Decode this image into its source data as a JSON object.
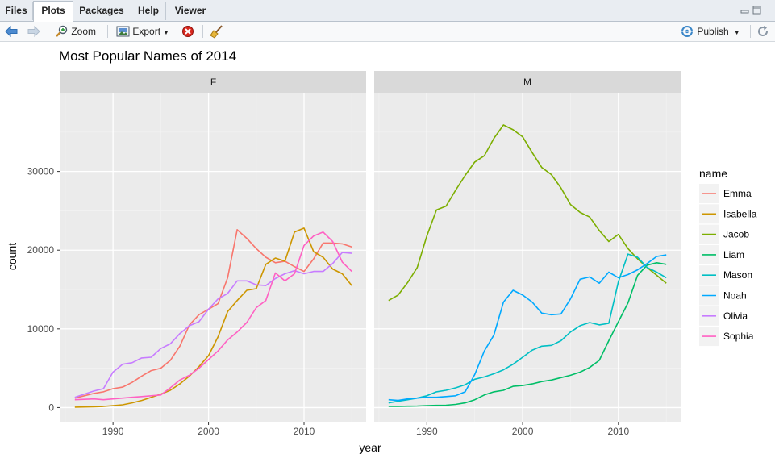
{
  "tabs": [
    "Files",
    "Plots",
    "Packages",
    "Help",
    "Viewer"
  ],
  "toolbar": {
    "zoom_label": "Zoom",
    "export_label": "Export",
    "publish_label": "Publish"
  },
  "chart_data": {
    "type": "line",
    "title": "Most Popular Names of 2014",
    "xlabel": "year",
    "ylabel": "count",
    "xlim": [
      1984.5,
      2016.5
    ],
    "ylim": [
      -1800,
      40000
    ],
    "x_ticks": [
      1990,
      2000,
      2010
    ],
    "y_ticks": [
      0,
      10000,
      20000,
      30000
    ],
    "grid": true,
    "legend_title": "name",
    "legend_position": "right",
    "panels": [
      "F",
      "M"
    ],
    "series": [
      {
        "name": "Emma",
        "panel": "F",
        "color": "#f8766d",
        "x": [
          1986,
          1987,
          1988,
          1989,
          1990,
          1991,
          1992,
          1993,
          1994,
          1995,
          1996,
          1997,
          1998,
          1999,
          2000,
          2001,
          2002,
          2003,
          2004,
          2005,
          2006,
          2007,
          2008,
          2009,
          2010,
          2011,
          2012,
          2013,
          2014,
          2015
        ],
        "y": [
          1200,
          1500,
          1800,
          2000,
          2400,
          2600,
          3200,
          4000,
          4700,
          5000,
          6000,
          7800,
          10500,
          11800,
          12500,
          13200,
          16500,
          22600,
          21500,
          20200,
          19100,
          18400,
          18600,
          17900,
          17300,
          18900,
          20900,
          20900,
          20800,
          20400
        ]
      },
      {
        "name": "Isabella",
        "panel": "F",
        "color": "#cd9600",
        "x": [
          1986,
          1987,
          1988,
          1989,
          1990,
          1991,
          1992,
          1993,
          1994,
          1995,
          1996,
          1997,
          1998,
          1999,
          2000,
          2001,
          2002,
          2003,
          2004,
          2005,
          2006,
          2007,
          2008,
          2009,
          2010,
          2011,
          2012,
          2013,
          2014,
          2015
        ],
        "y": [
          50,
          70,
          100,
          150,
          250,
          350,
          600,
          900,
          1300,
          1700,
          2200,
          3000,
          4000,
          5200,
          6600,
          9000,
          12200,
          13600,
          14900,
          15100,
          18200,
          19000,
          18600,
          22300,
          22800,
          19800,
          19100,
          17600,
          17000,
          15500
        ]
      },
      {
        "name": "Olivia",
        "panel": "F",
        "color": "#c77cff",
        "x": [
          1986,
          1987,
          1988,
          1989,
          1990,
          1991,
          1992,
          1993,
          1994,
          1995,
          1996,
          1997,
          1998,
          1999,
          2000,
          2001,
          2002,
          2003,
          2004,
          2005,
          2006,
          2007,
          2008,
          2009,
          2010,
          2011,
          2012,
          2013,
          2014,
          2015
        ],
        "y": [
          1300,
          1700,
          2100,
          2400,
          4500,
          5500,
          5700,
          6300,
          6400,
          7500,
          8100,
          9400,
          10400,
          10900,
          12500,
          13800,
          14500,
          16100,
          16100,
          15600,
          15500,
          16400,
          17000,
          17400,
          17000,
          17300,
          17300,
          18300,
          19700,
          19600
        ]
      },
      {
        "name": "Sophia",
        "panel": "F",
        "color": "#ff61c3",
        "x": [
          1986,
          1987,
          1988,
          1989,
          1990,
          1991,
          1992,
          1993,
          1994,
          1995,
          1996,
          1997,
          1998,
          1999,
          2000,
          2001,
          2002,
          2003,
          2004,
          2005,
          2006,
          2007,
          2008,
          2009,
          2010,
          2011,
          2012,
          2013,
          2014,
          2015
        ],
        "y": [
          1000,
          1050,
          1100,
          1000,
          1100,
          1200,
          1300,
          1400,
          1500,
          1600,
          2500,
          3500,
          4100,
          5000,
          6100,
          7200,
          8600,
          9600,
          10800,
          12700,
          13600,
          17100,
          16100,
          17000,
          20600,
          21800,
          22300,
          21100,
          18500,
          17300
        ]
      },
      {
        "name": "Jacob",
        "panel": "M",
        "color": "#7cae00",
        "x": [
          1986,
          1987,
          1988,
          1989,
          1990,
          1991,
          1992,
          1993,
          1994,
          1995,
          1996,
          1997,
          1998,
          1999,
          2000,
          2001,
          2002,
          2003,
          2004,
          2005,
          2006,
          2007,
          2008,
          2009,
          2010,
          2011,
          2012,
          2013,
          2014,
          2015
        ],
        "y": [
          13600,
          14300,
          15900,
          17800,
          21800,
          25100,
          25600,
          27600,
          29500,
          31200,
          32000,
          34200,
          35900,
          35300,
          34400,
          32400,
          30500,
          29600,
          27900,
          25800,
          24800,
          24200,
          22500,
          21100,
          22000,
          20200,
          18900,
          17800,
          16800,
          15800
        ]
      },
      {
        "name": "Liam",
        "panel": "M",
        "color": "#00be67",
        "x": [
          1986,
          1987,
          1988,
          1989,
          1990,
          1991,
          1992,
          1993,
          1994,
          1995,
          1996,
          1997,
          1998,
          1999,
          2000,
          2001,
          2002,
          2003,
          2004,
          2005,
          2006,
          2007,
          2008,
          2009,
          2010,
          2011,
          2012,
          2013,
          2014,
          2015
        ],
        "y": [
          150,
          150,
          180,
          200,
          250,
          280,
          300,
          400,
          600,
          1000,
          1600,
          2000,
          2200,
          2700,
          2800,
          3000,
          3300,
          3500,
          3800,
          4100,
          4500,
          5100,
          6000,
          8500,
          10900,
          13300,
          16800,
          18100,
          18400,
          18200
        ]
      },
      {
        "name": "Mason",
        "panel": "M",
        "color": "#00bfc4",
        "x": [
          1986,
          1987,
          1988,
          1989,
          1990,
          1991,
          1992,
          1993,
          1994,
          1995,
          1996,
          1997,
          1998,
          1999,
          2000,
          2001,
          2002,
          2003,
          2004,
          2005,
          2006,
          2007,
          2008,
          2009,
          2010,
          2011,
          2012,
          2013,
          2014,
          2015
        ],
        "y": [
          600,
          800,
          1000,
          1200,
          1500,
          2000,
          2200,
          2500,
          2900,
          3600,
          3900,
          4300,
          4800,
          5500,
          6400,
          7300,
          7800,
          7900,
          8500,
          9600,
          10400,
          10800,
          10500,
          10700,
          16000,
          19500,
          19100,
          17800,
          17200,
          16500
        ]
      },
      {
        "name": "Noah",
        "panel": "M",
        "color": "#00a9ff",
        "x": [
          1986,
          1987,
          1988,
          1989,
          1990,
          1991,
          1992,
          1993,
          1994,
          1995,
          1996,
          1997,
          1998,
          1999,
          2000,
          2001,
          2002,
          2003,
          2004,
          2005,
          2006,
          2007,
          2008,
          2009,
          2010,
          2011,
          2012,
          2013,
          2014,
          2015
        ],
        "y": [
          1000,
          900,
          1100,
          1200,
          1300,
          1300,
          1400,
          1500,
          2000,
          4200,
          7200,
          9200,
          13400,
          14900,
          14300,
          13400,
          12000,
          11800,
          11900,
          13800,
          16300,
          16600,
          15800,
          17200,
          16500,
          16900,
          17500,
          18300,
          19200,
          19400
        ]
      }
    ]
  }
}
